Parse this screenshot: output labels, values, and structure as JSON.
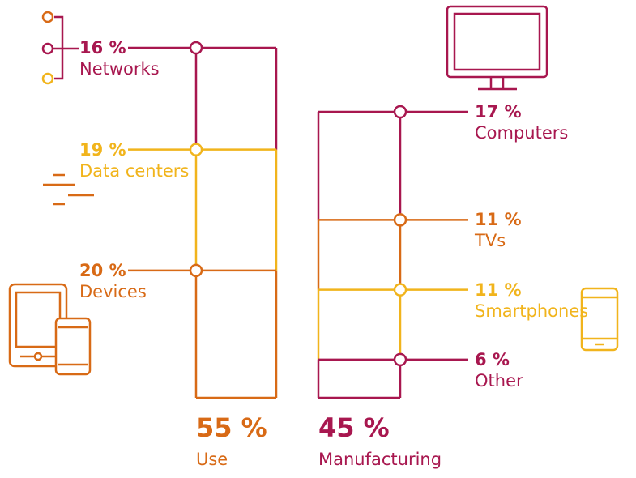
{
  "colors": {
    "crimson": "#a8174f",
    "orange": "#d86a16",
    "yellow": "#f1b41c"
  },
  "chart_data": {
    "type": "stacked-bar",
    "title": "",
    "unit": "%",
    "groups": [
      {
        "name": "Use",
        "total": 55,
        "total_label": "55 %",
        "color": "#d86a16",
        "segments": [
          {
            "name": "Networks",
            "value": 16,
            "label": "16 %",
            "color": "#a8174f",
            "icon": "network-nodes-icon"
          },
          {
            "name": "Data centers",
            "value": 19,
            "label": "19 %",
            "color": "#f1b41c",
            "icon": "server-lines-icon"
          },
          {
            "name": "Devices",
            "value": 20,
            "label": "20 %",
            "color": "#d86a16",
            "icon": "tablet-phone-icon"
          }
        ]
      },
      {
        "name": "Manufacturing",
        "total": 45,
        "total_label": "45 %",
        "color": "#a8174f",
        "segments": [
          {
            "name": "Computers",
            "value": 17,
            "label": "17 %",
            "color": "#a8174f",
            "icon": "desktop-monitor-icon"
          },
          {
            "name": "TVs",
            "value": 11,
            "label": "11 %",
            "color": "#d86a16",
            "icon": ""
          },
          {
            "name": "Smartphones",
            "value": 11,
            "label": "11 %",
            "color": "#f1b41c",
            "icon": "smartphone-icon"
          },
          {
            "name": "Other",
            "value": 6,
            "label": "6 %",
            "color": "#a8174f",
            "icon": ""
          }
        ]
      }
    ]
  }
}
